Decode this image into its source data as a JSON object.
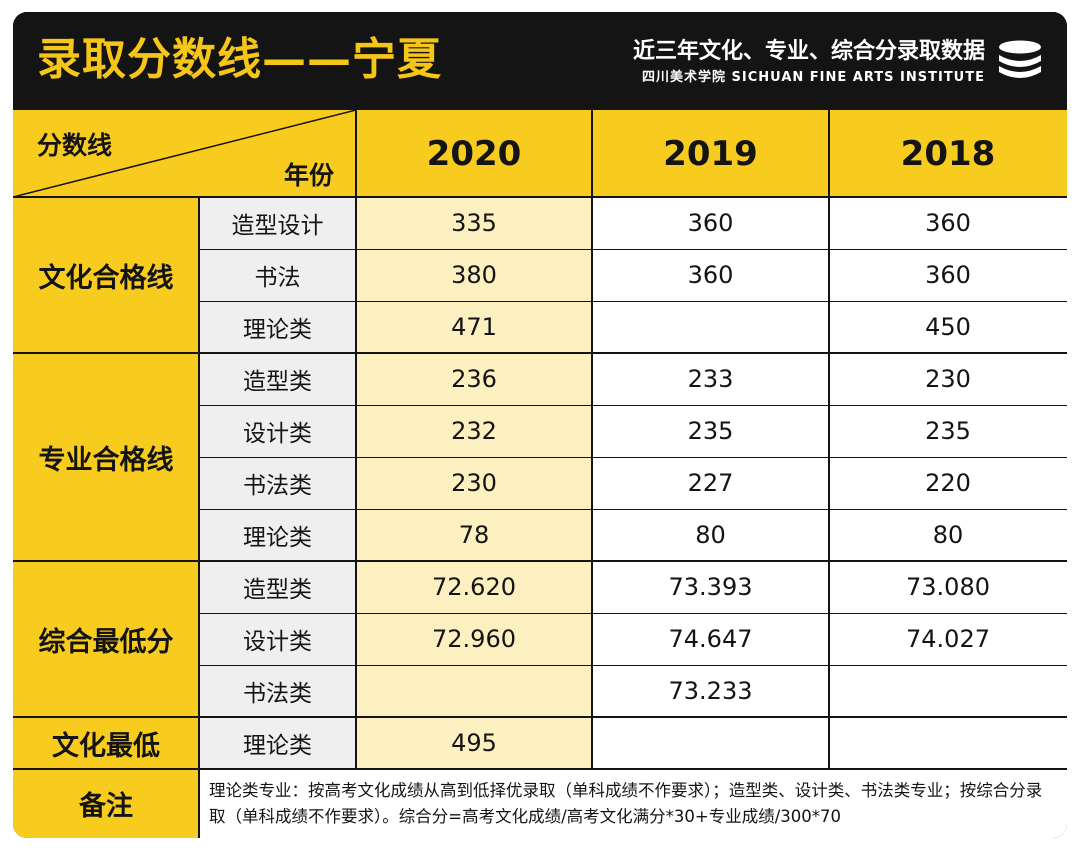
{
  "header": {
    "title": "录取分数线——宁夏",
    "subtitle": "近三年文化、专业、综合分录取数据",
    "school": "四川美术学院 SICHUAN FINE ARTS INSTITUTE",
    "logo_icon": "stacked-discs-icon"
  },
  "table": {
    "corner_top": "分数线",
    "corner_bottom": "年份",
    "years": [
      "2020",
      "2019",
      "2018"
    ],
    "groups": [
      {
        "label": "文化合格线",
        "rows": [
          {
            "label": "造型设计",
            "values": [
              "335",
              "360",
              "360"
            ]
          },
          {
            "label": "书法",
            "values": [
              "380",
              "360",
              "360"
            ]
          },
          {
            "label": "理论类",
            "values": [
              "471",
              "",
              "450"
            ]
          }
        ]
      },
      {
        "label": "专业合格线",
        "rows": [
          {
            "label": "造型类",
            "values": [
              "236",
              "233",
              "230"
            ]
          },
          {
            "label": "设计类",
            "values": [
              "232",
              "235",
              "235"
            ]
          },
          {
            "label": "书法类",
            "values": [
              "230",
              "227",
              "220"
            ]
          },
          {
            "label": "理论类",
            "values": [
              "78",
              "80",
              "80"
            ]
          }
        ]
      },
      {
        "label": "综合最低分",
        "rows": [
          {
            "label": "造型类",
            "values": [
              "72.620",
              "73.393",
              "73.080"
            ]
          },
          {
            "label": "设计类",
            "values": [
              "72.960",
              "74.647",
              "74.027"
            ]
          },
          {
            "label": "书法类",
            "values": [
              "",
              "73.233",
              ""
            ]
          }
        ]
      },
      {
        "label": "文化最低",
        "rows": [
          {
            "label": "理论类",
            "values": [
              "495",
              "",
              ""
            ]
          }
        ]
      }
    ],
    "remark_label": "备注",
    "remark_text": "理论类专业：按高考文化成绩从高到低择优录取（单科成绩不作要求）；造型类、设计类、书法类专业；按综合分录取（单科成绩不作要求）。综合分=高考文化成绩/高考文化满分*30+专业成绩/300*70"
  },
  "colors": {
    "accent_yellow": "#f8cb1f",
    "pale_yellow": "#fcefc0",
    "dark": "#141414",
    "gray": "#efefef"
  }
}
